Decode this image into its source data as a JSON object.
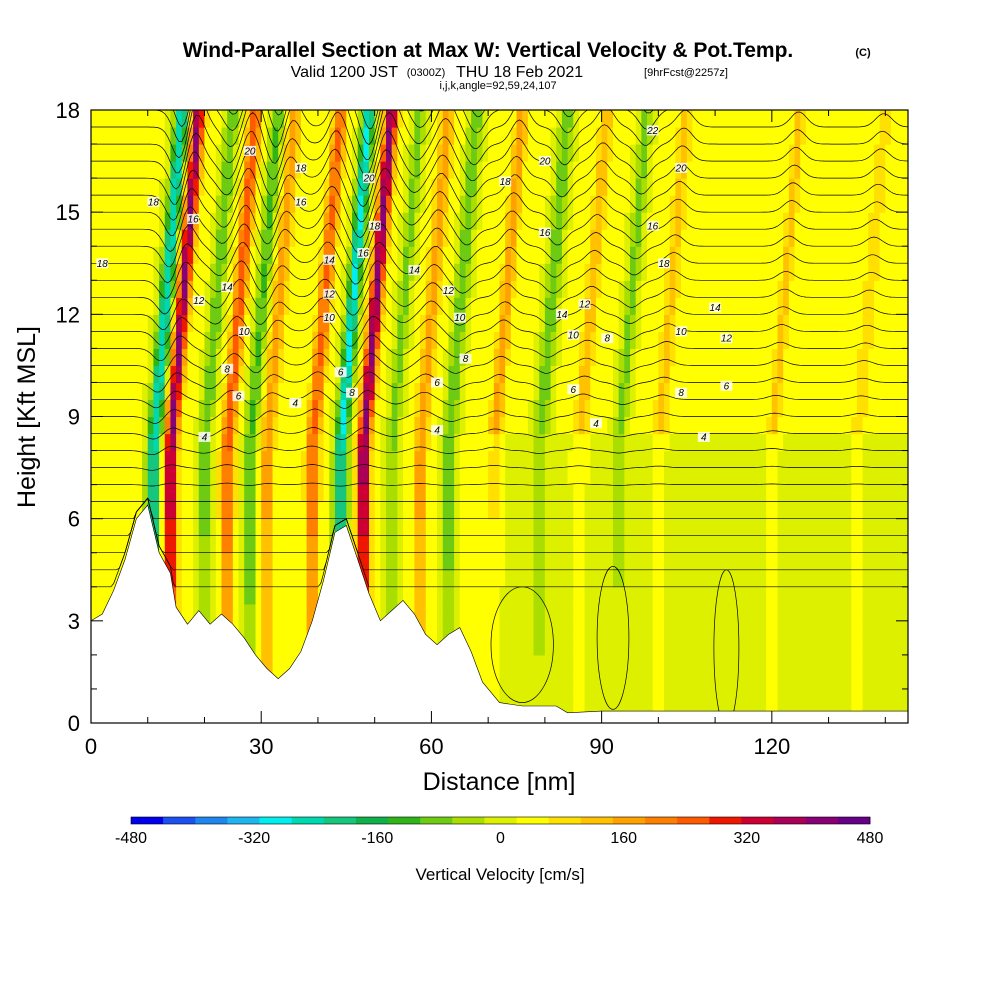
{
  "title": {
    "main": "Wind-Parallel Section at Max W: Vertical Velocity & Pot.Temp.",
    "copyright": "(C)",
    "valid_prefix": "Valid 1200 JST",
    "utc": "(0300Z)",
    "valid_date": "THU 18 Feb 2021",
    "forecast": "[9hrFcst@2257z]",
    "indices": "i,j,k,angle=92,59,24,107"
  },
  "colors": {
    "scale": [
      "#0000ee",
      "#1c50f0",
      "#1f86f0",
      "#1fb6ef",
      "#00eeee",
      "#00d9b0",
      "#16c67c",
      "#10b04a",
      "#2fb51a",
      "#6ccb12",
      "#aadd00",
      "#ddf000",
      "#ffff00",
      "#ffe000",
      "#ffc100",
      "#ffa200",
      "#ff8000",
      "#ff5a00",
      "#ee1700",
      "#cc0033",
      "#aa0055",
      "#880077",
      "#660088"
    ]
  },
  "chart_data": {
    "type": "heatmap",
    "xlabel": "Distance [nm]",
    "ylabel": "Height [Kft MSL]",
    "xlim": [
      0,
      144
    ],
    "ylim": [
      0,
      18
    ],
    "x_ticks": [
      0,
      30,
      60,
      90,
      120
    ],
    "x_tick_labels": [
      "0",
      "30",
      "60",
      "90",
      "120"
    ],
    "y_ticks": [
      0,
      3,
      6,
      9,
      12,
      15,
      18
    ],
    "y_tick_labels": [
      "0",
      "3",
      "6",
      "9",
      "12",
      "15",
      "18"
    ],
    "colorbar": {
      "label": "Vertical Velocity [cm/s]",
      "min": -480,
      "max": 480,
      "tick_values": [
        -480,
        -320,
        -160,
        0,
        160,
        320,
        480
      ],
      "tick_labels": [
        "-480",
        "-320",
        "-160",
        "0",
        "160",
        "320",
        "480"
      ]
    },
    "wave_bands": [
      {
        "x": 11,
        "w": -300
      },
      {
        "x": 14,
        "w": 380
      },
      {
        "x": 20,
        "w": -120
      },
      {
        "x": 24,
        "w": 230
      },
      {
        "x": 28,
        "w": -140
      },
      {
        "x": 31,
        "w": 160
      },
      {
        "x": 39,
        "w": 220
      },
      {
        "x": 44,
        "w": -300
      },
      {
        "x": 48,
        "w": 400
      },
      {
        "x": 53,
        "w": -100
      },
      {
        "x": 58,
        "w": 160
      },
      {
        "x": 63,
        "w": -130
      },
      {
        "x": 71,
        "w": 150
      },
      {
        "x": 79,
        "w": -130
      },
      {
        "x": 86,
        "w": 120
      },
      {
        "x": 93,
        "w": -110
      },
      {
        "x": 100,
        "w": 100
      },
      {
        "x": 120,
        "w": 90
      },
      {
        "x": 135,
        "w": 80
      }
    ],
    "terrain_height_kft": [
      [
        0,
        3.0
      ],
      [
        2,
        3.2
      ],
      [
        4,
        3.9
      ],
      [
        6,
        4.8
      ],
      [
        8,
        6.0
      ],
      [
        10,
        6.4
      ],
      [
        12,
        5.0
      ],
      [
        14,
        4.4
      ],
      [
        15,
        3.4
      ],
      [
        17,
        2.9
      ],
      [
        19,
        3.3
      ],
      [
        21,
        2.9
      ],
      [
        23,
        3.2
      ],
      [
        25,
        2.9
      ],
      [
        27,
        2.5
      ],
      [
        29,
        2.0
      ],
      [
        31,
        1.6
      ],
      [
        33,
        1.3
      ],
      [
        35,
        1.6
      ],
      [
        37,
        2.1
      ],
      [
        39,
        3.0
      ],
      [
        41,
        4.2
      ],
      [
        43,
        5.6
      ],
      [
        45,
        5.8
      ],
      [
        47,
        4.8
      ],
      [
        49,
        3.8
      ],
      [
        51,
        3.0
      ],
      [
        53,
        3.3
      ],
      [
        55,
        3.6
      ],
      [
        57,
        3.2
      ],
      [
        59,
        2.6
      ],
      [
        61,
        2.3
      ],
      [
        63,
        2.6
      ],
      [
        65,
        2.8
      ],
      [
        67,
        2.1
      ],
      [
        69,
        1.2
      ],
      [
        72,
        0.6
      ],
      [
        76,
        0.5
      ],
      [
        82,
        0.5
      ],
      [
        84,
        0.3
      ],
      [
        90,
        0.35
      ],
      [
        144,
        0.35
      ]
    ],
    "theta_contour_labels": [
      {
        "text": "18",
        "x": 2,
        "y": 13.5
      },
      {
        "text": "18",
        "x": 11,
        "y": 15.3
      },
      {
        "text": "16",
        "x": 18,
        "y": 14.8
      },
      {
        "text": "20",
        "x": 28,
        "y": 16.8
      },
      {
        "text": "18",
        "x": 37,
        "y": 16.3
      },
      {
        "text": "16",
        "x": 37,
        "y": 15.3
      },
      {
        "text": "14",
        "x": 24,
        "y": 12.8
      },
      {
        "text": "12",
        "x": 19,
        "y": 12.4
      },
      {
        "text": "10",
        "x": 27,
        "y": 11.5
      },
      {
        "text": "8",
        "x": 24,
        "y": 10.4
      },
      {
        "text": "6",
        "x": 26,
        "y": 9.6
      },
      {
        "text": "4",
        "x": 20,
        "y": 8.4
      },
      {
        "text": "4",
        "x": 36,
        "y": 9.4
      },
      {
        "text": "14",
        "x": 42,
        "y": 13.6
      },
      {
        "text": "12",
        "x": 42,
        "y": 12.6
      },
      {
        "text": "10",
        "x": 42,
        "y": 11.9
      },
      {
        "text": "6",
        "x": 44,
        "y": 10.3
      },
      {
        "text": "8",
        "x": 46,
        "y": 9.7
      },
      {
        "text": "20",
        "x": 49,
        "y": 16.0
      },
      {
        "text": "18",
        "x": 50,
        "y": 14.6
      },
      {
        "text": "16",
        "x": 48,
        "y": 13.8
      },
      {
        "text": "14",
        "x": 57,
        "y": 13.3
      },
      {
        "text": "12",
        "x": 63,
        "y": 12.7
      },
      {
        "text": "10",
        "x": 65,
        "y": 11.9
      },
      {
        "text": "8",
        "x": 66,
        "y": 10.7
      },
      {
        "text": "6",
        "x": 61,
        "y": 10.0
      },
      {
        "text": "4",
        "x": 61,
        "y": 8.6
      },
      {
        "text": "18",
        "x": 73,
        "y": 15.9
      },
      {
        "text": "20",
        "x": 80,
        "y": 16.5
      },
      {
        "text": "16",
        "x": 80,
        "y": 14.4
      },
      {
        "text": "14",
        "x": 83,
        "y": 12.0
      },
      {
        "text": "12",
        "x": 87,
        "y": 12.3
      },
      {
        "text": "10",
        "x": 85,
        "y": 11.4
      },
      {
        "text": "6",
        "x": 85,
        "y": 9.8
      },
      {
        "text": "4",
        "x": 89,
        "y": 8.8
      },
      {
        "text": "8",
        "x": 91,
        "y": 11.3
      },
      {
        "text": "22",
        "x": 99,
        "y": 17.4
      },
      {
        "text": "20",
        "x": 104,
        "y": 16.3
      },
      {
        "text": "16",
        "x": 99,
        "y": 14.6
      },
      {
        "text": "18",
        "x": 101,
        "y": 13.5
      },
      {
        "text": "14",
        "x": 110,
        "y": 12.2
      },
      {
        "text": "12",
        "x": 112,
        "y": 11.3
      },
      {
        "text": "10",
        "x": 104,
        "y": 11.5
      },
      {
        "text": "8",
        "x": 104,
        "y": 9.7
      },
      {
        "text": "6",
        "x": 112,
        "y": 9.9
      },
      {
        "text": "4",
        "x": 108,
        "y": 8.4
      }
    ]
  }
}
